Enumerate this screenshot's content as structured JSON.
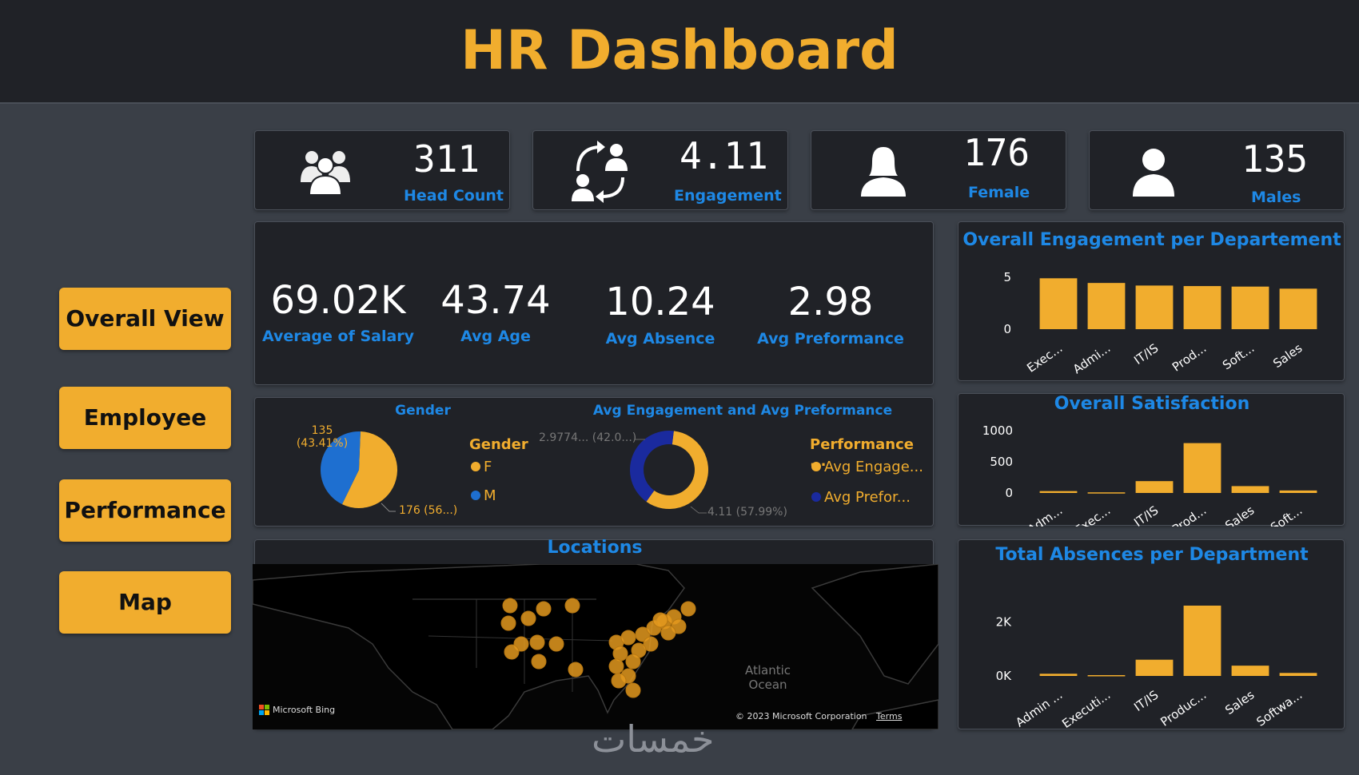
{
  "header": {
    "title": "HR Dashboard"
  },
  "nav": [
    {
      "label": "Overall View"
    },
    {
      "label": "Employee"
    },
    {
      "label": "Performance"
    },
    {
      "label": "Map"
    }
  ],
  "kpis": [
    {
      "value": "311",
      "label": "Head Count",
      "icon": "people-group-icon"
    },
    {
      "value": "4.11",
      "label": "Engagement",
      "icon": "engagement-cycle-icon"
    },
    {
      "value": "176",
      "label": "Female",
      "icon": "female-user-icon"
    },
    {
      "value": "135",
      "label": "Males",
      "icon": "male-user-icon"
    }
  ],
  "stats": [
    {
      "value": "69.02K",
      "label": "Average of Salary"
    },
    {
      "value": "43.74",
      "label": "Avg Age"
    },
    {
      "value": "10.24",
      "label": "Avg Absence"
    },
    {
      "value": "2.98",
      "label": "Avg Preformance"
    }
  ],
  "colors": {
    "accent": "#f1ad2e",
    "blue": "#1e88e5",
    "navy": "#1a2a9e",
    "panel": "#202227",
    "bg": "#3a3f47"
  },
  "pies": {
    "gender_label_top": "135",
    "gender_label_top_pct": "(43.41%)",
    "gender_label_bottom": "176 (56...)",
    "donut_label_top": "2.9774... (42.0...)",
    "donut_label_bottom": "4.11 (57.99%)",
    "gender_legend_title": "Gender",
    "gender_legend": [
      "F",
      "M"
    ],
    "perf_legend_title": "Performance ...",
    "perf_legend": [
      "Avg Engage...",
      "Avg Prefor..."
    ]
  },
  "map": {
    "title": "Locations",
    "ocean_label_1": "Atlantic",
    "ocean_label_2": "Ocean",
    "bing": "Microsoft Bing",
    "copyright": "© 2023 Microsoft Corporation",
    "terms": "Terms"
  },
  "watermark": "خمسات",
  "chart_data": [
    {
      "type": "pie",
      "title": "Gender",
      "categories": [
        "F",
        "M"
      ],
      "values": [
        176,
        135
      ],
      "colors": [
        "#f1ad2e",
        "#1e6fd0"
      ]
    },
    {
      "type": "pie",
      "title": "Avg Engagement and Avg Preformance",
      "categories": [
        "Avg Engage...",
        "Avg Prefor..."
      ],
      "values": [
        4.11,
        2.9774
      ],
      "colors": [
        "#f1ad2e",
        "#1a2a9e"
      ]
    },
    {
      "type": "bar",
      "title": "Overall Engagement per Departement",
      "categories": [
        "Exec...",
        "Admi...",
        "IT/IS",
        "Prod...",
        "Soft...",
        "Sales"
      ],
      "values": [
        4.9,
        4.45,
        4.2,
        4.15,
        4.1,
        3.9
      ],
      "ylim": [
        0,
        5
      ],
      "yticks": [
        "0",
        "5"
      ],
      "ytick_values": [
        0,
        5
      ]
    },
    {
      "type": "bar",
      "title": "Overall Satisfaction",
      "categories": [
        "Adm...",
        "Exec...",
        "IT/IS",
        "Prod...",
        "Sales",
        "Soft..."
      ],
      "values": [
        30,
        10,
        190,
        800,
        110,
        40
      ],
      "ylim": [
        0,
        1000
      ],
      "yticks": [
        "0",
        "500",
        "1000"
      ],
      "ytick_values": [
        0,
        500,
        1000
      ]
    },
    {
      "type": "bar",
      "title": "Total Absences per Department",
      "categories": [
        "Admin ...",
        "Executi...",
        "IT/IS",
        "Produc...",
        "Sales",
        "Softwa..."
      ],
      "values": [
        80,
        30,
        600,
        2600,
        380,
        110
      ],
      "ylim": [
        0,
        2600
      ],
      "yticks": [
        "0K",
        "2K"
      ],
      "ytick_values": [
        0,
        2000
      ]
    }
  ]
}
